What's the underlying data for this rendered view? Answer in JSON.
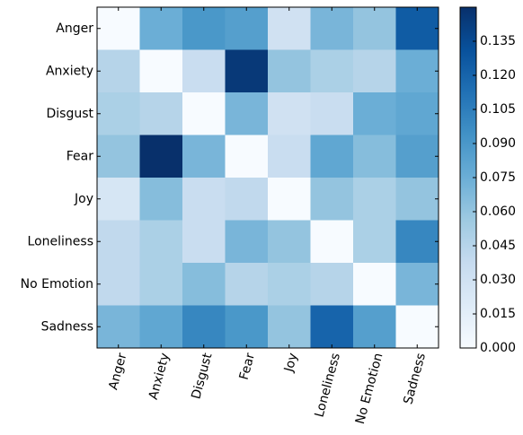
{
  "chart_data": {
    "type": "heatmap",
    "rows": [
      "Anger",
      "Anxiety",
      "Disgust",
      "Fear",
      "Joy",
      "Loneliness",
      "No Emotion",
      "Sadness"
    ],
    "columns": [
      "Anger",
      "Anxiety",
      "Disgust",
      "Fear",
      "Joy",
      "Loneliness",
      "No Emotion",
      "Sadness"
    ],
    "values": [
      [
        0,
        0.075,
        0.09,
        0.085,
        0.03,
        0.07,
        0.06,
        0.125
      ],
      [
        0.045,
        0,
        0.035,
        0.145,
        0.06,
        0.05,
        0.045,
        0.075
      ],
      [
        0.05,
        0.045,
        0,
        0.07,
        0.03,
        0.035,
        0.075,
        0.08
      ],
      [
        0.06,
        0.15,
        0.07,
        0,
        0.035,
        0.08,
        0.065,
        0.085
      ],
      [
        0.025,
        0.065,
        0.035,
        0.04,
        0,
        0.06,
        0.05,
        0.06
      ],
      [
        0.04,
        0.05,
        0.035,
        0.07,
        0.06,
        0,
        0.05,
        0.1
      ],
      [
        0.04,
        0.05,
        0.065,
        0.045,
        0.05,
        0.045,
        0,
        0.07
      ],
      [
        0.07,
        0.08,
        0.1,
        0.09,
        0.06,
        0.12,
        0.085,
        0
      ]
    ],
    "colormap": [
      "#f7fbff",
      "#deebf7",
      "#c6dbef",
      "#9ecae1",
      "#6baed6",
      "#4292c6",
      "#2171b5",
      "#08519c",
      "#08306b"
    ],
    "clim": [
      0,
      0.15
    ],
    "cticks": [
      {
        "value": 0,
        "label": "0.000"
      },
      {
        "value": 0.015,
        "label": "0.015"
      },
      {
        "value": 0.03,
        "label": "0.030"
      },
      {
        "value": 0.045,
        "label": "0.045"
      },
      {
        "value": 0.06,
        "label": "0.060"
      },
      {
        "value": 0.075,
        "label": "0.075"
      },
      {
        "value": 0.09,
        "label": "0.090"
      },
      {
        "value": 0.105,
        "label": "0.105"
      },
      {
        "value": 0.12,
        "label": "0.120"
      },
      {
        "value": 0.135,
        "label": "0.135"
      }
    ]
  }
}
